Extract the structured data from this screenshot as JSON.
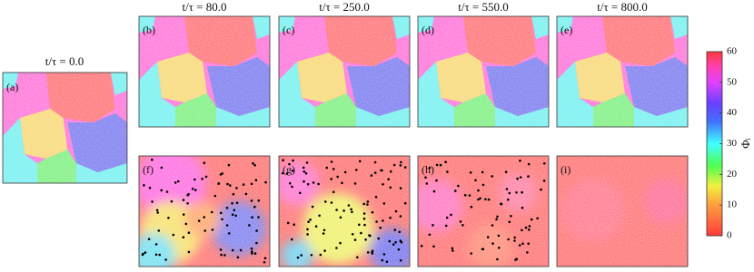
{
  "panel_a": {
    "title": "t/τ = 0.0",
    "label": "(a)"
  },
  "columns": [
    {
      "title": "t/τ = 80.0",
      "top_label": "(b)",
      "bottom_label": "(f)"
    },
    {
      "title": "t/τ = 250.0",
      "top_label": "(c)",
      "bottom_label": "(g)"
    },
    {
      "title": "t/τ = 550.0",
      "top_label": "(d)",
      "bottom_label": "(h)"
    },
    {
      "title": "t/τ = 800.0",
      "top_label": "(e)",
      "bottom_label": "(i)"
    }
  ],
  "colorbar": {
    "label": "Φᵢ",
    "lim": [
      0,
      60
    ],
    "ticks": [
      0,
      10,
      20,
      30,
      40,
      50,
      60
    ]
  }
}
